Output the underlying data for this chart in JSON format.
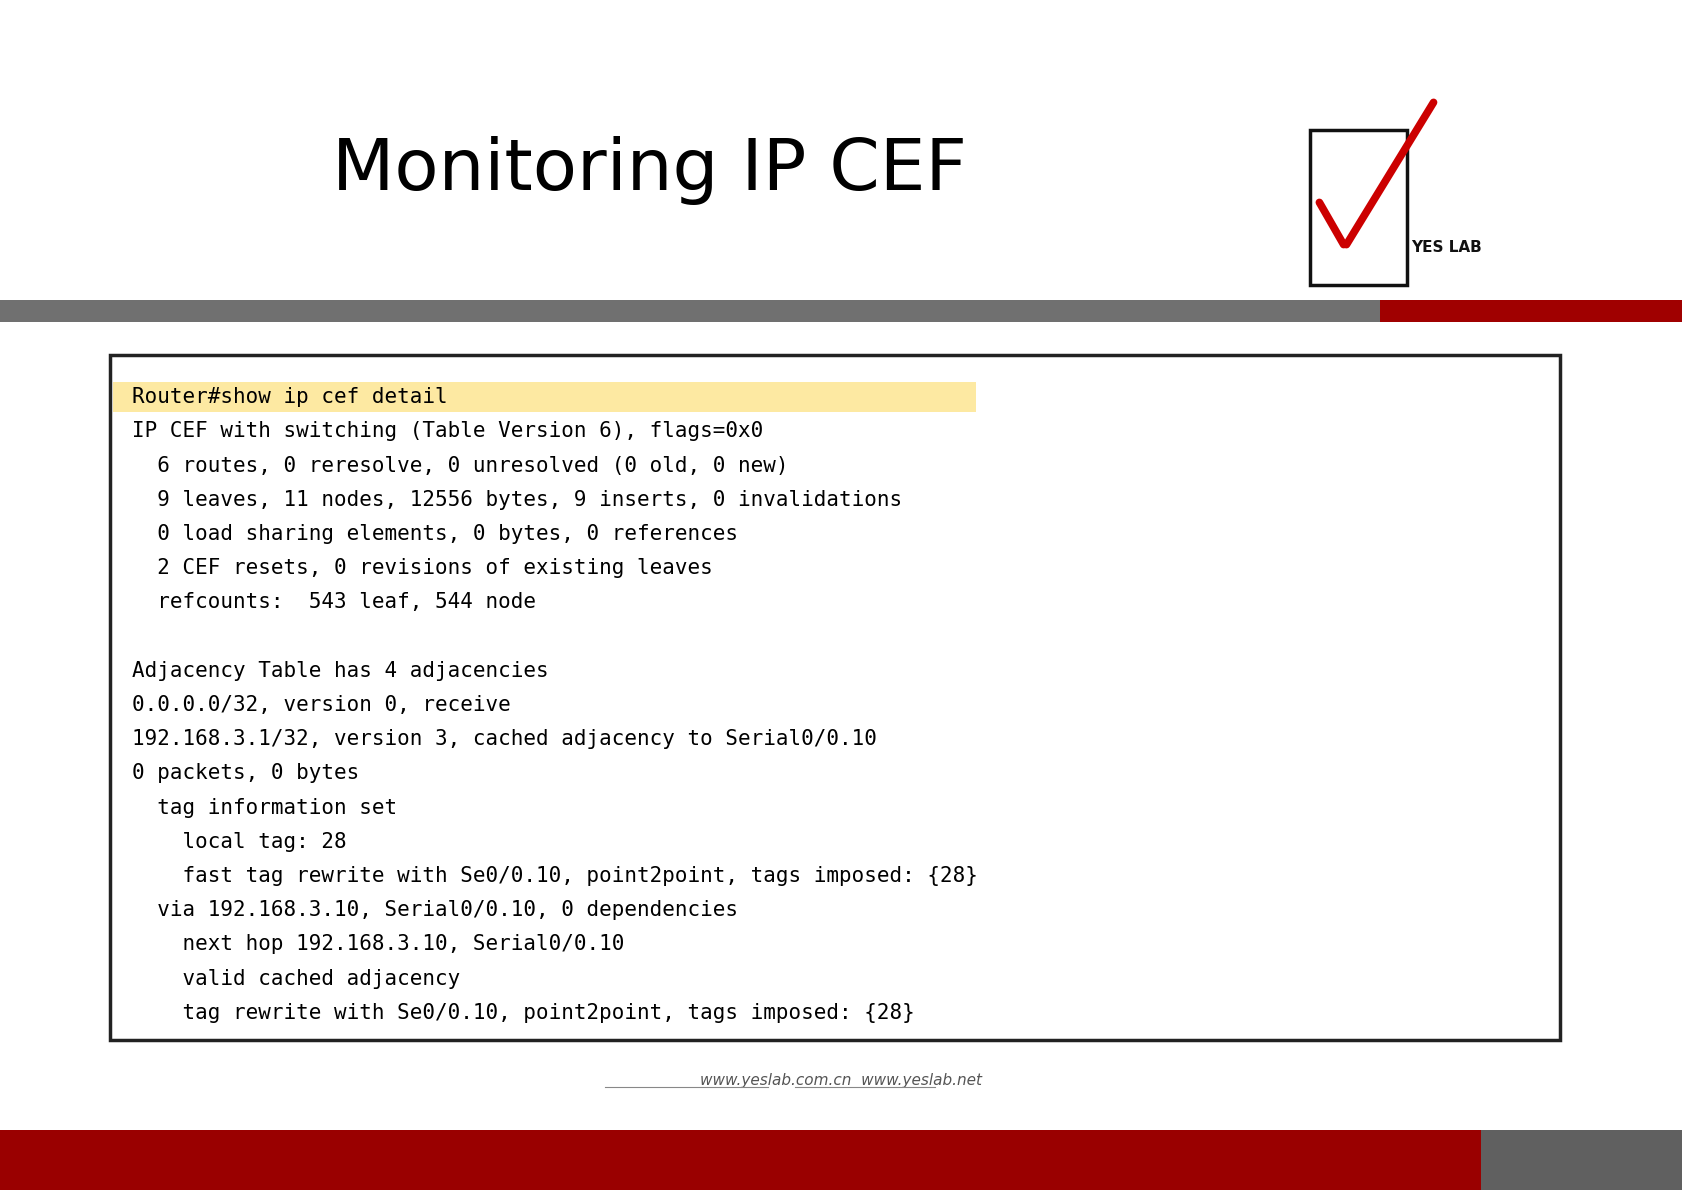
{
  "title": "Monitoring IP CEF",
  "title_fontsize": 52,
  "bg_color": "#ffffff",
  "header_bar_gray": "#707070",
  "header_bar_red": "#a00000",
  "footer_bar_red": "#9a0000",
  "footer_bar_gray": "#606060",
  "footer_links": "www.yeslab.com.cn  www.yeslab.net",
  "box_bg": "#ffffff",
  "box_border": "#222222",
  "highlight_bg": "#fde9a2",
  "code_lines": [
    {
      "text": "Router#show ip cef detail",
      "highlight": true
    },
    {
      "text": "IP CEF with switching (Table Version 6), flags=0x0",
      "highlight": false
    },
    {
      "text": "  6 routes, 0 reresolve, 0 unresolved (0 old, 0 new)",
      "highlight": false
    },
    {
      "text": "  9 leaves, 11 nodes, 12556 bytes, 9 inserts, 0 invalidations",
      "highlight": false
    },
    {
      "text": "  0 load sharing elements, 0 bytes, 0 references",
      "highlight": false
    },
    {
      "text": "  2 CEF resets, 0 revisions of existing leaves",
      "highlight": false
    },
    {
      "text": "  refcounts:  543 leaf, 544 node",
      "highlight": false
    },
    {
      "text": "",
      "highlight": false
    },
    {
      "text": "Adjacency Table has 4 adjacencies",
      "highlight": false
    },
    {
      "text": "0.0.0.0/32, version 0, receive",
      "highlight": false
    },
    {
      "text": "192.168.3.1/32, version 3, cached adjacency to Serial0/0.10",
      "highlight": false
    },
    {
      "text": "0 packets, 0 bytes",
      "highlight": false
    },
    {
      "text": "  tag information set",
      "highlight": false
    },
    {
      "text": "    local tag: 28",
      "highlight": false
    },
    {
      "text": "    fast tag rewrite with Se0/0.10, point2point, tags imposed: {28}",
      "highlight": false
    },
    {
      "text": "  via 192.168.3.10, Serial0/0.10, 0 dependencies",
      "highlight": false
    },
    {
      "text": "    next hop 192.168.3.10, Serial0/0.10",
      "highlight": false
    },
    {
      "text": "    valid cached adjacency",
      "highlight": false
    },
    {
      "text": "    tag rewrite with Se0/0.10, point2point, tags imposed: {28}",
      "highlight": false
    }
  ],
  "code_fontsize": 15,
  "code_font": "monospace"
}
